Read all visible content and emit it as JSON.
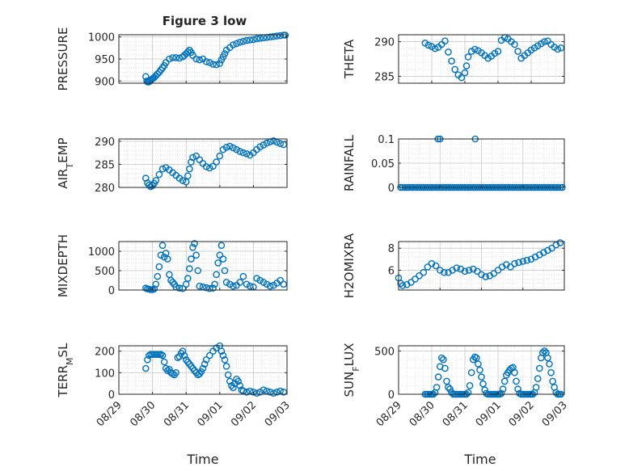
{
  "figure": {
    "xlabel": "Time",
    "marker_color": "#0072BD",
    "date_ticks": [
      "08/29",
      "08/30",
      "08/31",
      "09/01",
      "09/02",
      "09/03"
    ]
  },
  "chart_data": [
    {
      "type": "scatter",
      "title": "Figure 3 low",
      "ylabel": "PRESSURE",
      "ylim": [
        895,
        1005
      ],
      "yticks": [
        900,
        950,
        1000
      ],
      "xlim": [
        "08/29",
        "09/03"
      ],
      "grid": true,
      "x_days": [
        0.8,
        0.83,
        0.86,
        0.89,
        0.92,
        0.95,
        0.98,
        1.01,
        1.05,
        1.1,
        1.15,
        1.2,
        1.25,
        1.3,
        1.35,
        1.4,
        1.5,
        1.6,
        1.7,
        1.8,
        1.9,
        1.95,
        2.0,
        2.05,
        2.1,
        2.15,
        2.2,
        2.3,
        2.4,
        2.5,
        2.6,
        2.7,
        2.8,
        2.9,
        3.0,
        3.05,
        3.1,
        3.15,
        3.2,
        3.3,
        3.4,
        3.5,
        3.6,
        3.7,
        3.8,
        3.9,
        4.0,
        4.1,
        4.2,
        4.3,
        4.4,
        4.5,
        4.6,
        4.7,
        4.8,
        4.9,
        4.95
      ],
      "values": [
        910,
        900,
        898,
        898,
        900,
        902,
        904,
        906,
        908,
        912,
        916,
        920,
        925,
        930,
        935,
        942,
        950,
        953,
        953,
        952,
        955,
        958,
        962,
        966,
        970,
        965,
        958,
        950,
        948,
        950,
        944,
        942,
        938,
        937,
        940,
        948,
        955,
        962,
        970,
        976,
        982,
        985,
        988,
        990,
        992,
        993,
        994,
        996,
        997,
        998,
        999,
        1000,
        1001,
        1002,
        1003,
        1004,
        1004
      ]
    },
    {
      "type": "scatter",
      "title": "",
      "ylabel": "THETA",
      "ylim": [
        284,
        291
      ],
      "yticks": [
        285,
        290
      ],
      "xlim": [
        "08/29",
        "09/03"
      ],
      "grid": true,
      "x_days": [
        0.8,
        0.9,
        1.0,
        1.1,
        1.2,
        1.3,
        1.4,
        1.5,
        1.6,
        1.7,
        1.8,
        1.9,
        2.0,
        2.05,
        2.1,
        2.2,
        2.3,
        2.4,
        2.5,
        2.6,
        2.7,
        2.8,
        2.9,
        3.0,
        3.1,
        3.2,
        3.3,
        3.4,
        3.5,
        3.6,
        3.7,
        3.8,
        3.9,
        4.0,
        4.1,
        4.2,
        4.3,
        4.4,
        4.5,
        4.6,
        4.7,
        4.8,
        4.9
      ],
      "values": [
        289.8,
        289.5,
        289.3,
        289.0,
        289.2,
        289.6,
        290.1,
        288.5,
        287.2,
        286.0,
        285.2,
        284.8,
        285.5,
        286.5,
        287.8,
        288.6,
        288.9,
        288.7,
        288.4,
        288.0,
        287.6,
        287.9,
        288.3,
        288.6,
        290.2,
        290.6,
        290.4,
        290.0,
        289.6,
        288.6,
        287.6,
        288.0,
        288.4,
        288.8,
        289.1,
        289.4,
        289.7,
        290.0,
        290.1,
        289.6,
        289.2,
        288.9,
        289.1
      ]
    },
    {
      "type": "scatter",
      "title": "",
      "ylabel": "AIR_TEMP",
      "ylim": [
        280,
        290.5
      ],
      "yticks": [
        280,
        285,
        290
      ],
      "xlim": [
        "08/29",
        "09/03"
      ],
      "grid": true,
      "x_days": [
        0.8,
        0.85,
        0.9,
        0.95,
        1.0,
        1.05,
        1.1,
        1.2,
        1.3,
        1.4,
        1.5,
        1.6,
        1.7,
        1.8,
        1.9,
        2.0,
        2.05,
        2.1,
        2.15,
        2.2,
        2.3,
        2.4,
        2.5,
        2.6,
        2.7,
        2.8,
        2.9,
        3.0,
        3.1,
        3.2,
        3.3,
        3.4,
        3.5,
        3.6,
        3.7,
        3.8,
        3.9,
        4.0,
        4.1,
        4.2,
        4.3,
        4.4,
        4.5,
        4.6,
        4.7,
        4.8,
        4.9
      ],
      "values": [
        282.0,
        281.0,
        280.5,
        280.2,
        280.4,
        280.9,
        281.5,
        282.8,
        284.0,
        284.3,
        283.8,
        283.2,
        282.6,
        282.0,
        281.5,
        281.2,
        282.5,
        284.0,
        285.5,
        286.5,
        286.8,
        286.0,
        285.2,
        284.5,
        284.2,
        284.6,
        285.5,
        286.8,
        288.2,
        288.7,
        288.9,
        288.6,
        288.2,
        287.8,
        287.5,
        287.3,
        287.0,
        287.5,
        288.2,
        288.8,
        289.2,
        289.6,
        289.9,
        290.1,
        289.8,
        289.5,
        289.3
      ]
    },
    {
      "type": "scatter",
      "title": "",
      "ylabel": "RAINFALL",
      "ylim": [
        0,
        0.1
      ],
      "yticks": [
        0,
        0.05,
        0.1
      ],
      "ytick_labels": [
        "0",
        "0.05",
        "0.1"
      ],
      "xlim": [
        "08/30",
        "09/03"
      ],
      "grid": true,
      "x_days": [
        1.05,
        1.1,
        1.15,
        1.2,
        1.25,
        1.3,
        1.35,
        1.4,
        1.45,
        1.5,
        1.55,
        1.6,
        1.65,
        1.7,
        1.75,
        1.8,
        1.85,
        1.9,
        1.95,
        2.0,
        2.05,
        2.1,
        2.15,
        2.2,
        2.25,
        2.3,
        2.35,
        2.4,
        2.45,
        2.5,
        2.55,
        2.6,
        2.65,
        2.7,
        2.75,
        2.8,
        2.85,
        2.9,
        2.95,
        3.0,
        3.05,
        3.1,
        3.15,
        3.2,
        3.25,
        3.3,
        3.35,
        3.4,
        3.45,
        3.5,
        3.55,
        3.6,
        3.65,
        3.7,
        3.75,
        3.8,
        3.85,
        3.9,
        3.95,
        4.0,
        4.05,
        4.1,
        4.15,
        4.2,
        4.25,
        4.3,
        4.35,
        4.4,
        4.45,
        4.5,
        4.55,
        4.6,
        4.65,
        4.7,
        4.75,
        4.8,
        4.85,
        4.9,
        4.95,
        1.95,
        2.0,
        2.85
      ],
      "values": [
        0,
        0,
        0,
        0,
        0,
        0,
        0,
        0,
        0,
        0,
        0,
        0,
        0,
        0,
        0,
        0,
        0,
        0,
        0,
        0,
        0,
        0,
        0,
        0,
        0,
        0,
        0,
        0,
        0,
        0,
        0,
        0,
        0,
        0,
        0,
        0,
        0,
        0,
        0,
        0,
        0,
        0,
        0,
        0,
        0,
        0,
        0,
        0,
        0,
        0,
        0,
        0,
        0,
        0,
        0,
        0,
        0,
        0,
        0,
        0,
        0,
        0,
        0,
        0,
        0,
        0,
        0,
        0,
        0,
        0,
        0,
        0,
        0,
        0,
        0,
        0,
        0,
        0,
        0,
        0.1,
        0.1,
        0.1
      ]
    },
    {
      "type": "scatter",
      "title": "",
      "ylabel": "MIXDEPTH",
      "ylim": [
        0,
        1250
      ],
      "yticks": [
        0,
        500,
        1000
      ],
      "xlim": [
        "08/29",
        "09/03"
      ],
      "grid": true,
      "x_days": [
        0.8,
        0.85,
        0.9,
        0.95,
        1.0,
        1.05,
        1.1,
        1.15,
        1.2,
        1.25,
        1.3,
        1.35,
        1.4,
        1.45,
        1.5,
        1.55,
        1.6,
        1.65,
        1.7,
        1.8,
        1.9,
        2.0,
        2.05,
        2.1,
        2.15,
        2.2,
        2.25,
        2.3,
        2.35,
        2.4,
        2.5,
        2.6,
        2.7,
        2.8,
        2.85,
        2.9,
        2.95,
        3.0,
        3.05,
        3.1,
        3.15,
        3.2,
        3.3,
        3.4,
        3.5,
        3.6,
        3.7,
        3.8,
        3.9,
        4.0,
        4.1,
        4.2,
        4.3,
        4.4,
        4.5,
        4.6,
        4.7,
        4.8,
        4.9
      ],
      "values": [
        50,
        30,
        20,
        10,
        10,
        30,
        150,
        350,
        600,
        900,
        1150,
        850,
        950,
        800,
        400,
        250,
        200,
        150,
        80,
        50,
        40,
        150,
        300,
        550,
        800,
        1100,
        1200,
        900,
        500,
        100,
        80,
        60,
        40,
        50,
        150,
        400,
        700,
        900,
        1150,
        800,
        500,
        200,
        150,
        100,
        120,
        200,
        350,
        150,
        100,
        80,
        300,
        250,
        200,
        150,
        100,
        120,
        180,
        250,
        150
      ]
    },
    {
      "type": "scatter",
      "title": "",
      "ylabel": "H2OMIXRA",
      "ylim": [
        4.2,
        8.6
      ],
      "yticks": [
        6,
        8
      ],
      "xlim": [
        "08/30",
        "09/03"
      ],
      "grid": true,
      "x_days": [
        1.0,
        1.05,
        1.1,
        1.2,
        1.3,
        1.4,
        1.5,
        1.6,
        1.7,
        1.8,
        1.9,
        2.0,
        2.1,
        2.2,
        2.3,
        2.4,
        2.5,
        2.6,
        2.7,
        2.8,
        2.9,
        3.0,
        3.1,
        3.2,
        3.3,
        3.4,
        3.5,
        3.6,
        3.7,
        3.8,
        3.9,
        4.0,
        4.1,
        4.2,
        4.3,
        4.4,
        4.5,
        4.6,
        4.7,
        4.8,
        4.9
      ],
      "values": [
        5.3,
        4.8,
        4.6,
        4.7,
        4.9,
        5.2,
        5.5,
        5.8,
        6.3,
        6.6,
        6.4,
        6.0,
        5.8,
        5.8,
        6.0,
        6.2,
        6.1,
        5.9,
        6.0,
        6.1,
        5.9,
        5.6,
        5.4,
        5.5,
        5.7,
        6.0,
        6.3,
        6.5,
        6.3,
        6.6,
        6.7,
        6.8,
        6.9,
        7.0,
        7.2,
        7.4,
        7.6,
        7.8,
        8.0,
        8.3,
        8.5
      ]
    },
    {
      "type": "scatter",
      "title": "",
      "ylabel": "TERR_MSL",
      "ylim": [
        0,
        225
      ],
      "yticks": [
        0,
        100,
        200
      ],
      "xlim": [
        "08/29",
        "09/03"
      ],
      "grid": true,
      "x_days": [
        0.8,
        0.85,
        0.9,
        0.95,
        1.0,
        1.05,
        1.1,
        1.15,
        1.2,
        1.25,
        1.3,
        1.35,
        1.4,
        1.45,
        1.5,
        1.55,
        1.6,
        1.65,
        1.7,
        1.75,
        1.8,
        1.85,
        1.9,
        1.95,
        2.0,
        2.05,
        2.1,
        2.15,
        2.2,
        2.25,
        2.3,
        2.35,
        2.4,
        2.45,
        2.5,
        2.55,
        2.6,
        2.7,
        2.8,
        2.9,
        3.0,
        3.05,
        3.1,
        3.15,
        3.2,
        3.25,
        3.3,
        3.35,
        3.4,
        3.45,
        3.5,
        3.55,
        3.6,
        3.65,
        3.7,
        3.8,
        3.9,
        4.0,
        4.1,
        4.2,
        4.3,
        4.4,
        4.5,
        4.6,
        4.7,
        4.8,
        4.9
      ],
      "values": [
        120,
        160,
        180,
        185,
        185,
        185,
        185,
        185,
        185,
        185,
        180,
        150,
        120,
        110,
        115,
        100,
        95,
        90,
        100,
        170,
        175,
        190,
        200,
        180,
        160,
        150,
        140,
        130,
        120,
        110,
        100,
        90,
        95,
        105,
        120,
        140,
        160,
        180,
        200,
        215,
        225,
        200,
        180,
        160,
        130,
        90,
        60,
        40,
        30,
        50,
        70,
        60,
        40,
        20,
        15,
        10,
        15,
        10,
        5,
        10,
        20,
        15,
        10,
        5,
        10,
        15,
        10
      ]
    },
    {
      "type": "scatter",
      "title": "",
      "ylabel": "SUN_FLUX",
      "ylim": [
        0,
        560
      ],
      "yticks": [
        0,
        500
      ],
      "xlim": [
        "08/29",
        "09/03"
      ],
      "grid": true,
      "x_days": [
        0.8,
        0.85,
        0.9,
        0.95,
        1.0,
        1.05,
        1.1,
        1.15,
        1.2,
        1.25,
        1.3,
        1.35,
        1.4,
        1.45,
        1.5,
        1.55,
        1.6,
        1.65,
        1.7,
        1.75,
        1.8,
        1.85,
        1.9,
        1.95,
        2.0,
        2.05,
        2.1,
        2.15,
        2.2,
        2.25,
        2.3,
        2.35,
        2.4,
        2.45,
        2.5,
        2.55,
        2.6,
        2.65,
        2.7,
        2.75,
        2.8,
        2.85,
        2.9,
        2.95,
        3.0,
        3.05,
        3.1,
        3.15,
        3.2,
        3.25,
        3.3,
        3.35,
        3.4,
        3.45,
        3.5,
        3.55,
        3.6,
        3.65,
        3.7,
        3.75,
        3.8,
        3.85,
        3.9,
        3.95,
        4.0,
        4.05,
        4.1,
        4.15,
        4.2,
        4.25,
        4.3,
        4.35,
        4.4,
        4.45,
        4.5,
        4.55,
        4.6,
        4.65,
        4.7,
        4.75,
        4.8,
        4.85,
        4.9
      ],
      "values": [
        0,
        0,
        0,
        0,
        0,
        0,
        20,
        80,
        200,
        320,
        420,
        400,
        300,
        150,
        80,
        60,
        20,
        0,
        0,
        0,
        0,
        0,
        0,
        0,
        0,
        0,
        20,
        100,
        250,
        400,
        430,
        420,
        350,
        280,
        200,
        120,
        50,
        10,
        0,
        0,
        0,
        0,
        0,
        0,
        0,
        0,
        10,
        60,
        150,
        220,
        250,
        280,
        300,
        310,
        250,
        150,
        60,
        10,
        0,
        0,
        0,
        0,
        0,
        0,
        0,
        0,
        20,
        80,
        180,
        300,
        420,
        480,
        500,
        480,
        420,
        350,
        250,
        150,
        80,
        20,
        0,
        0,
        0
      ]
    }
  ]
}
